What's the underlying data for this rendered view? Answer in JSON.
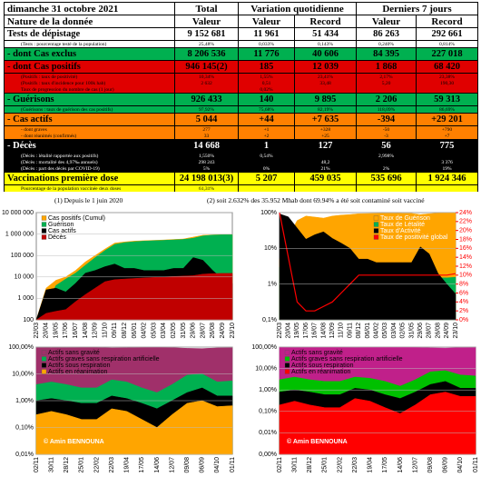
{
  "table": {
    "rows": [
      [
        "dimanche 31 octobre 2021",
        "Total",
        "Variation quotidienne",
        "Derniers 7 jours"
      ],
      [
        "Nature de la donnée",
        "Valeur",
        "Valeur",
        "Record",
        "Valeur",
        "Record"
      ],
      [
        "Tests de dépistage",
        "9 152 681",
        "11 961",
        "51 434",
        "86 263",
        "292 661"
      ],
      [
        "(Tests : pourcentage testé de la population)",
        "25,48%",
        "0,033%",
        "0,143%",
        "0,240%",
        "0,814%"
      ],
      [
        "- dont Cas exclus",
        "8 206 536",
        "11 776",
        "40 606",
        "84 395",
        "227 018"
      ],
      [
        "- dont Cas positifs",
        "946 145(2)",
        "185",
        "12 039",
        "1 868",
        "68 420"
      ],
      [
        "(Positifs : taux de positivité)",
        "10,34%",
        "1,55%",
        "23,41%",
        "2,17%",
        "23,38%"
      ],
      [
        "(Positifs : taux d'incidence pour 100k hab)",
        "2 632",
        "0,51",
        "33,48",
        "5,20",
        "190,30"
      ],
      [
        "Taux de progression du nombre de cas (1 jour)",
        null,
        "0,02%",
        null,
        null,
        null
      ],
      [
        "- Guérisons",
        "926 433",
        "140",
        "9 895",
        "2 206",
        "59 313"
      ],
      [
        "(Guérisons : taux de guérison des cas positifs)",
        "97,92%",
        "75,68%",
        "82,19%",
        "118,09%",
        "86,69%"
      ],
      [
        "- Cas actifs",
        "5 044",
        "+44",
        "+7 635",
        "-394",
        "+29 201"
      ],
      [
        "- dont graves",
        "277",
        "+1",
        "+328",
        "-50",
        "+790"
      ],
      [
        "- dont réanimés (confirmés)",
        "33",
        "+2",
        "+25",
        "-3",
        "+7"
      ],
      [
        "- Décès",
        "14 668",
        "1",
        "127",
        "56",
        "775"
      ],
      [
        "(Décès : létalité rapportée aux positifs)",
        "1,550%",
        "0,54%",
        null,
        "2,998%",
        null
      ],
      [
        "(Décès : mortalité des 4,97‰ annuels)",
        "298 243",
        null,
        "48,2",
        null,
        "3 376"
      ],
      [
        "(Décès : part des décès par COVID-19)",
        "5%",
        "0%",
        "21%",
        "2%",
        "19%"
      ],
      [
        "Vaccinations première dose",
        "24 198 013(3)",
        "5 207",
        "459 035",
        "535 696",
        "1 924 346"
      ],
      [
        "Pourcentage de la population vaccinée deux doses",
        "61,31%",
        null,
        null,
        null,
        null
      ]
    ]
  },
  "footnotes": [
    "(1) Depuis le 1 juin 2020",
    "(2) soit 2.632% des 35.952 Mhab dont 69.94% a été soit contaminé soit vacciné"
  ],
  "chart_data": [
    {
      "type": "area",
      "log_scale": true,
      "categories": [
        "22/03",
        "20/04",
        "19/05",
        "17/06",
        "16/07",
        "14/08",
        "12/09",
        "11/10",
        "09/11",
        "08/12",
        "06/01",
        "04/02",
        "05/03",
        "03/04",
        "02/05",
        "31/05",
        "29/06",
        "28/07",
        "26/08",
        "24/09",
        "23/10"
      ],
      "ylim": [
        100,
        10000000
      ],
      "yticks": [
        100,
        {
          "value": 1000,
          "label": "1 000"
        },
        {
          "value": 10000,
          "label": "10 000"
        },
        {
          "value": 100000,
          "label": "100 000"
        },
        {
          "value": 1000000,
          "label": "1 000 000"
        },
        {
          "value": 10000000,
          "label": "10 000 000"
        }
      ],
      "series": [
        {
          "name": "Cas positifs (Cumul)",
          "color": "#ffa500",
          "values": [
            100,
            3000,
            7000,
            10000,
            20000,
            50000,
            100000,
            200000,
            380000,
            430000,
            470000,
            490000,
            510000,
            530000,
            560000,
            590000,
            720000,
            880000,
            920000,
            940000,
            946145
          ]
        },
        {
          "name": "Guérison",
          "color": "#00b050",
          "values": [
            100,
            400,
            4000,
            8000,
            15000,
            35000,
            80000,
            170000,
            330000,
            400000,
            440000,
            470000,
            490000,
            510000,
            535000,
            565000,
            640000,
            820000,
            900000,
            925000,
            926433
          ]
        },
        {
          "name": "Cas actifs",
          "color": "#000000",
          "values": [
            100,
            2500,
            3000,
            2000,
            5000,
            15000,
            20000,
            30000,
            40000,
            25000,
            25000,
            20000,
            20000,
            20000,
            25000,
            25000,
            80000,
            60000,
            20000,
            8000,
            5044
          ]
        },
        {
          "name": "Décès",
          "color": "#c00000",
          "values": [
            100,
            200,
            250,
            300,
            700,
            1500,
            3000,
            6000,
            7500,
            8000,
            8500,
            9000,
            9500,
            10000,
            10500,
            11000,
            11500,
            13500,
            14300,
            14600,
            14668
          ]
        }
      ]
    },
    {
      "type": "area",
      "log_scale": true,
      "categories": [
        "22/03",
        "20/04",
        "19/05",
        "17/06",
        "16/07",
        "14/08",
        "12/09",
        "11/10",
        "09/11",
        "08/12",
        "06/01",
        "04/02",
        "05/03",
        "03/04",
        "02/05",
        "31/05",
        "29/06",
        "28/07",
        "26/08",
        "24/09",
        "23/10"
      ],
      "ylim": [
        0.1,
        100
      ],
      "yticks": [
        {
          "value": 0.1,
          "label": "0,1%"
        },
        {
          "value": 1,
          "label": "1%"
        },
        {
          "value": 10,
          "label": "10%"
        },
        {
          "value": 100,
          "label": "100%"
        }
      ],
      "y2lim": [
        0,
        24
      ],
      "y2ticks": [
        {
          "value": 0,
          "label": "0%"
        },
        {
          "value": 2,
          "label": "2%"
        },
        {
          "value": 4,
          "label": "4%"
        },
        {
          "value": 6,
          "label": "6%"
        },
        {
          "value": 8,
          "label": "8%"
        },
        {
          "value": 10,
          "label": "10%"
        },
        {
          "value": 12,
          "label": "12%"
        },
        {
          "value": 14,
          "label": "14%"
        },
        {
          "value": 16,
          "label": "16%"
        },
        {
          "value": 18,
          "label": "18%"
        },
        {
          "value": 20,
          "label": "20%"
        },
        {
          "value": 22,
          "label": "22%"
        },
        {
          "value": 24,
          "label": "24%"
        }
      ],
      "series": [
        {
          "name": "Taux de Guérison",
          "color": "#ffa500",
          "values": [
            5,
            20,
            60,
            80,
            75,
            70,
            80,
            85,
            88,
            93,
            94,
            95,
            96,
            96,
            95,
            95,
            88,
            93,
            97,
            98,
            97.92
          ]
        },
        {
          "name": "Taux de Létalité",
          "color": "#00b050",
          "values": [
            3,
            4,
            3,
            2.5,
            1.5,
            1.3,
            1.4,
            1.5,
            1.6,
            1.7,
            1.7,
            1.7,
            1.7,
            1.7,
            1.7,
            1.7,
            1.6,
            1.5,
            1.5,
            1.5,
            1.55
          ]
        },
        {
          "name": "Taux d'Activité",
          "color": "#000000",
          "values": [
            92,
            76,
            37,
            18,
            24,
            29,
            19,
            14,
            10,
            5,
            5,
            4,
            4,
            4,
            4,
            4,
            11,
            7,
            2,
            1,
            0.53
          ]
        },
        {
          "name": "Taux de positivité global",
          "color": "#ff0000",
          "axis": "y2",
          "values": [
            24,
            14,
            4,
            2,
            2,
            3,
            4,
            6,
            8,
            10,
            10,
            10,
            10,
            10,
            10,
            10,
            10,
            10,
            10,
            10,
            10.34
          ]
        }
      ]
    },
    {
      "type": "area",
      "log_scale": true,
      "annotation": "© Amin BENNOUNA",
      "categories": [
        "02/11",
        "30/11",
        "28/12",
        "25/01",
        "22/02",
        "22/03",
        "19/04",
        "17/05",
        "14/06",
        "12/07",
        "09/08",
        "06/09",
        "04/10",
        "01/11"
      ],
      "ylim": [
        0.01,
        100
      ],
      "yticks": [
        {
          "value": 0.01,
          "label": "0,01%"
        },
        {
          "value": 0.1,
          "label": "0,10%"
        },
        {
          "value": 1,
          "label": "1,00%"
        },
        {
          "value": 10,
          "label": "10,00%"
        },
        {
          "value": 100,
          "label": "100,00%"
        }
      ],
      "series": [
        {
          "name": "Actifs sans gravité",
          "color": "#a0306a",
          "values": [
            95,
            94,
            95,
            96,
            96,
            93,
            94,
            96,
            97,
            95,
            90,
            88,
            93,
            94
          ]
        },
        {
          "name": "Actifs graves sans respiration artificielle",
          "color": "#00b050",
          "values": [
            4,
            5,
            4,
            3,
            3,
            6,
            5,
            3,
            2,
            4,
            9,
            10,
            5,
            5.5
          ]
        },
        {
          "name": "Actifs sous respiration",
          "color": "#000000",
          "values": [
            1,
            1.2,
            1,
            0.8,
            0.8,
            1.5,
            1.2,
            0.8,
            0.5,
            1,
            2,
            3,
            1.5,
            1.5
          ]
        },
        {
          "name": "Actifs en réanimation",
          "color": "#ffa500",
          "values": [
            0.3,
            0.4,
            0.3,
            0.2,
            0.2,
            0.5,
            0.4,
            0.2,
            0.1,
            0.3,
            0.8,
            1,
            0.6,
            0.65
          ]
        }
      ]
    },
    {
      "type": "area",
      "log_scale": true,
      "annotation": "© Amin BENNOUNA",
      "categories": [
        "02/11",
        "30/11",
        "28/12",
        "25/01",
        "22/02",
        "22/03",
        "19/04",
        "17/05",
        "14/06",
        "12/07",
        "09/08",
        "06/09",
        "04/10",
        "01/11"
      ],
      "ylim": [
        0.001,
        100
      ],
      "yticks": [
        {
          "value": 0.001,
          "label": "0,00%"
        },
        {
          "value": 0.01,
          "label": "0,01%"
        },
        {
          "value": 0.1,
          "label": "0,10%"
        },
        {
          "value": 1,
          "label": "1,00%"
        },
        {
          "value": 10,
          "label": "10,00%"
        },
        {
          "value": 100,
          "label": "100,00%"
        }
      ],
      "series": [
        {
          "name": "Actifs sans gravité",
          "color": "#c0208a",
          "values": [
            96,
            95,
            96,
            97,
            97,
            95,
            96,
            97,
            98,
            96,
            92,
            90,
            94,
            95
          ]
        },
        {
          "name": "Actifs graves sans respiration artificielle",
          "color": "#00c000",
          "values": [
            3,
            4,
            3,
            2.5,
            2.5,
            4,
            3.5,
            2.5,
            1.5,
            3,
            7,
            8,
            5,
            4.5
          ]
        },
        {
          "name": "Actifs sous respiration",
          "color": "#000000",
          "values": [
            0.8,
            1,
            0.8,
            0.6,
            0.6,
            1.2,
            1,
            0.6,
            0.4,
            0.8,
            1.8,
            2.5,
            1.2,
            1.2
          ]
        },
        {
          "name": "Actifs en réanimation",
          "color": "#ff0000",
          "values": [
            0.2,
            0.3,
            0.2,
            0.15,
            0.15,
            0.4,
            0.3,
            0.15,
            0.08,
            0.2,
            0.6,
            0.8,
            0.5,
            0.5
          ]
        }
      ]
    }
  ]
}
